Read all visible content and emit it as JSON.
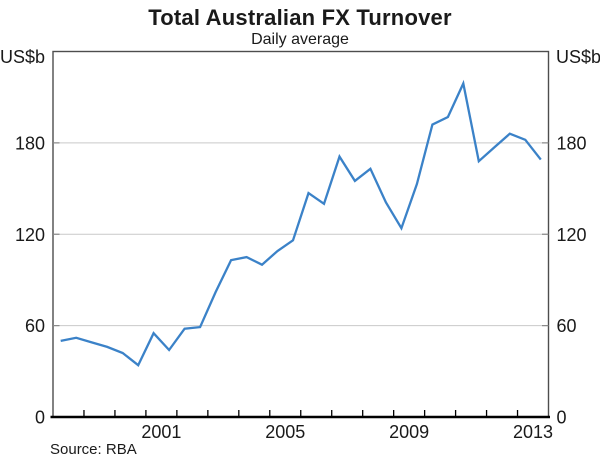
{
  "header": {
    "title": "Total Australian FX Turnover",
    "subtitle": "Daily average"
  },
  "source_note": "Source: RBA",
  "chart_data": {
    "type": "line",
    "title": "Total Australian FX Turnover",
    "subtitle": "Daily average",
    "ylabel_left": "US$b",
    "ylabel_right": "US$b",
    "ylim": [
      0,
      240
    ],
    "yticks": [
      0,
      60,
      120,
      180
    ],
    "ytick_labels": [
      "0",
      "60",
      "120",
      "180"
    ],
    "xlim_years": [
      1998,
      2014
    ],
    "xtick_interval_years": 1,
    "xtick_labels": [
      "2001",
      "2005",
      "2009",
      "2013"
    ],
    "xtick_label_positions": [
      2001.5,
      2005.5,
      2009.5,
      2013.5
    ],
    "grid": "horizontal",
    "legend": "none",
    "line_color": "#3b82c8",
    "grid_color": "#c9c9c9",
    "frame_color": "#4d4d4d",
    "axis_color": "#000000",
    "source": "Source: RBA",
    "series": [
      {
        "name": "Total Australian FX turnover, daily average (US$b)",
        "periods": [
          "Apr 1998",
          "Oct 1998",
          "Apr 1999",
          "Oct 1999",
          "Apr 2000",
          "Oct 2000",
          "Apr 2001",
          "Oct 2001",
          "Apr 2002",
          "Oct 2002",
          "Apr 2003",
          "Oct 2003",
          "Apr 2004",
          "Oct 2004",
          "Apr 2005",
          "Oct 2005",
          "Apr 2006",
          "Oct 2006",
          "Apr 2007",
          "Oct 2007",
          "Apr 2008",
          "Oct 2008",
          "Apr 2009",
          "Oct 2009",
          "Apr 2010",
          "Oct 2010",
          "Apr 2011",
          "Oct 2011",
          "Apr 2012",
          "Oct 2012",
          "Apr 2013",
          "Oct 2013"
        ],
        "x": [
          1998.25,
          1998.75,
          1999.25,
          1999.75,
          2000.25,
          2000.75,
          2001.25,
          2001.75,
          2002.25,
          2002.75,
          2003.25,
          2003.75,
          2004.25,
          2004.75,
          2005.25,
          2005.75,
          2006.25,
          2006.75,
          2007.25,
          2007.75,
          2008.25,
          2008.75,
          2009.25,
          2009.75,
          2010.25,
          2010.75,
          2011.25,
          2011.75,
          2012.25,
          2012.75,
          2013.25,
          2013.75
        ],
        "values": [
          50,
          52,
          49,
          46,
          42,
          34,
          55,
          44,
          58,
          59,
          82,
          103,
          105,
          100,
          109,
          116,
          147,
          140,
          171,
          155,
          163,
          141,
          124,
          153,
          192,
          197,
          219,
          168,
          177,
          186,
          182,
          169
        ]
      }
    ]
  }
}
